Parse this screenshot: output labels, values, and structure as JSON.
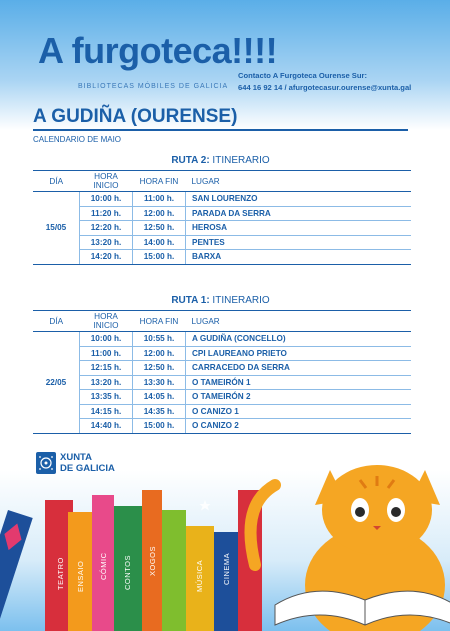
{
  "header": {
    "brand": "A furgoteca!!!!",
    "brand_sub": "BIBLIOTECAS MÓBILES DE GALICIA",
    "contact_line1": "Contacto A Furgoteca Ourense Sur:",
    "contact_line2": "644 16 92 14 / afurgotecasur.ourense@xunta.gal"
  },
  "location": "A GUDIÑA (OURENSE)",
  "calendar": "CALENDARIO DE MAIO",
  "columns": {
    "day": "DÍA",
    "start": "HORA INICIO",
    "end": "HORA FIN",
    "place": "LUGAR"
  },
  "routes": [
    {
      "title_bold": "RUTA 2:",
      "title_rest": " ITINERARIO",
      "day": "15/05",
      "stops": [
        {
          "start": "10:00 h.",
          "end": "11:00 h.",
          "place": "SAN LOURENZO"
        },
        {
          "start": "11:20 h.",
          "end": "12:00 h.",
          "place": "PARADA DA SERRA"
        },
        {
          "start": "12:20 h.",
          "end": "12:50 h.",
          "place": "HEROSA"
        },
        {
          "start": "13:20 h.",
          "end": "14:00 h.",
          "place": "PENTES"
        },
        {
          "start": "14:20 h.",
          "end": "15:00 h.",
          "place": "BARXA"
        }
      ]
    },
    {
      "title_bold": "RUTA 1:",
      "title_rest": " ITINERARIO",
      "day": "22/05",
      "stops": [
        {
          "start": "10:00 h.",
          "end": "10:55 h.",
          "place": "A GUDIÑA (CONCELLO)"
        },
        {
          "start": "11:00 h.",
          "end": "12:00 h.",
          "place": "CPI LAUREANO PRIETO"
        },
        {
          "start": "12:15 h.",
          "end": "12:50 h.",
          "place": "CARRACEDO DA SERRA"
        },
        {
          "start": "13:20 h.",
          "end": "13:30 h.",
          "place": "O TAMEIRÓN 1"
        },
        {
          "start": "13:35 h.",
          "end": "14:05 h.",
          "place": "O TAMEIRÓN 2"
        },
        {
          "start": "14:15 h.",
          "end": "14:35 h.",
          "place": "O CANIZO 1"
        },
        {
          "start": "14:40 h.",
          "end": "15:00 h.",
          "place": "O CANIZO 2"
        }
      ]
    }
  ],
  "footer": {
    "xunta_line1": "XUNTA",
    "xunta_line2": "DE GALICIA",
    "books": [
      "TEATRO",
      "ENSAIO",
      "CÓMIC",
      "CONTOS",
      "XOGOS",
      "MÚSICA",
      "CINEMA"
    ]
  },
  "colors": {
    "brand_blue": "#1b5fa8",
    "cat_orange": "#f5a623"
  }
}
